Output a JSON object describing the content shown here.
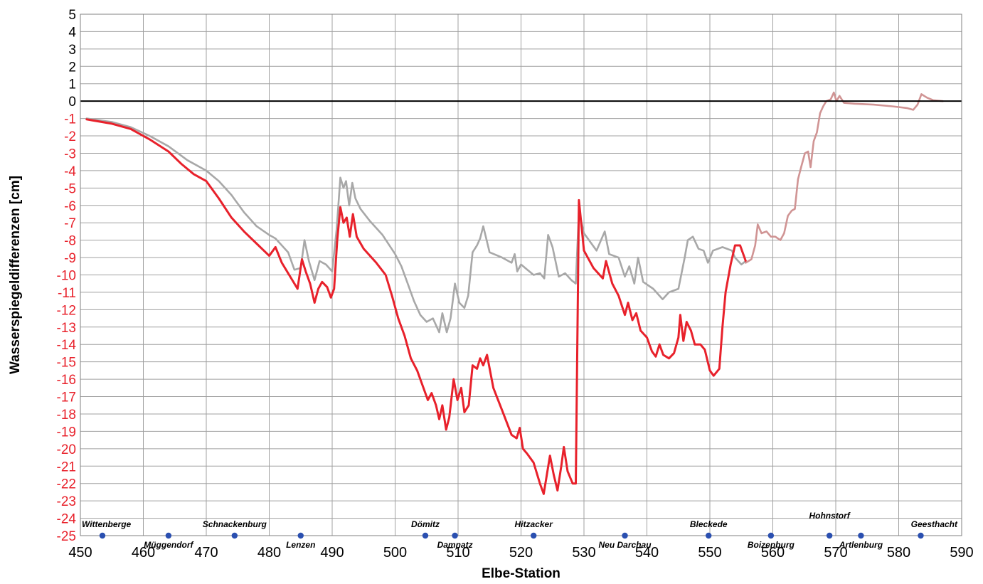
{
  "chart_data": {
    "type": "line",
    "xlabel": "Elbe-Station",
    "ylabel": "Wasserspiegeldifferenzen [cm]",
    "xlim": [
      450,
      590
    ],
    "ylim": [
      -25,
      5
    ],
    "x_ticks": [
      450,
      460,
      470,
      480,
      490,
      500,
      510,
      520,
      530,
      540,
      550,
      560,
      570,
      580,
      590
    ],
    "y_ticks": [
      5,
      4,
      3,
      2,
      1,
      0,
      -1,
      -2,
      -3,
      -4,
      -5,
      -6,
      -7,
      -8,
      -9,
      -10,
      -11,
      -12,
      -13,
      -14,
      -15,
      -16,
      -17,
      -18,
      -19,
      -20,
      -21,
      -22,
      -23,
      -24,
      -25
    ],
    "grid": true,
    "colors": {
      "red_series": "#e8212b",
      "gray_series": "#a8a8a8",
      "zero_line": "#000000",
      "positive_tick_labels": "#000000",
      "negative_tick_labels": "#e8212b",
      "station_marker": "#2a4fb0",
      "grid": "#a0a0a0"
    },
    "series": [
      {
        "color": "#a8a8a8",
        "points": [
          [
            451,
            -1.0
          ],
          [
            455,
            -1.2
          ],
          [
            458,
            -1.5
          ],
          [
            461,
            -2.0
          ],
          [
            464,
            -2.6
          ],
          [
            467,
            -3.4
          ],
          [
            470,
            -4.0
          ],
          [
            472,
            -4.6
          ],
          [
            474,
            -5.4
          ],
          [
            476,
            -6.4
          ],
          [
            478,
            -7.2
          ],
          [
            480,
            -7.7
          ],
          [
            481,
            -7.9
          ],
          [
            483,
            -8.7
          ],
          [
            484,
            -9.7
          ],
          [
            485,
            -9.6
          ],
          [
            485.6,
            -8.0
          ],
          [
            486.3,
            -9.2
          ],
          [
            487.2,
            -10.3
          ],
          [
            488,
            -9.2
          ],
          [
            489,
            -9.4
          ],
          [
            490,
            -9.8
          ],
          [
            490.7,
            -7.4
          ],
          [
            491.3,
            -4.4
          ],
          [
            491.8,
            -5.0
          ],
          [
            492.2,
            -4.6
          ],
          [
            492.7,
            -6.0
          ],
          [
            493.2,
            -4.7
          ],
          [
            493.7,
            -5.6
          ],
          [
            494.5,
            -6.2
          ],
          [
            496,
            -6.9
          ],
          [
            498,
            -7.7
          ],
          [
            500,
            -8.8
          ],
          [
            501,
            -9.5
          ],
          [
            502,
            -10.5
          ],
          [
            503,
            -11.5
          ],
          [
            504,
            -12.3
          ],
          [
            505,
            -12.7
          ],
          [
            506,
            -12.5
          ],
          [
            507,
            -13.3
          ],
          [
            507.5,
            -12.2
          ],
          [
            508.2,
            -13.3
          ],
          [
            508.8,
            -12.5
          ],
          [
            509.5,
            -10.5
          ],
          [
            510.2,
            -11.6
          ],
          [
            511,
            -11.9
          ],
          [
            511.6,
            -11.2
          ],
          [
            512.3,
            -8.7
          ],
          [
            513,
            -8.3
          ],
          [
            513.5,
            -7.9
          ],
          [
            514,
            -7.2
          ],
          [
            515,
            -8.7
          ],
          [
            517,
            -9.0
          ],
          [
            518.5,
            -9.3
          ],
          [
            519,
            -8.8
          ],
          [
            519.4,
            -9.8
          ],
          [
            520,
            -9.4
          ],
          [
            521,
            -9.7
          ],
          [
            522,
            -10.0
          ],
          [
            523,
            -9.9
          ],
          [
            523.7,
            -10.2
          ],
          [
            524.3,
            -7.7
          ],
          [
            525,
            -8.4
          ],
          [
            526,
            -10.1
          ],
          [
            527,
            -9.9
          ],
          [
            528,
            -10.3
          ],
          [
            528.7,
            -10.5
          ],
          [
            529.2,
            -6.3
          ],
          [
            530,
            -7.6
          ],
          [
            532,
            -8.6
          ],
          [
            533.3,
            -7.5
          ],
          [
            534,
            -8.8
          ],
          [
            535.5,
            -9.0
          ],
          [
            536.5,
            -10.1
          ],
          [
            537.2,
            -9.5
          ],
          [
            538,
            -10.5
          ],
          [
            538.6,
            -9.0
          ],
          [
            539.4,
            -10.4
          ],
          [
            541,
            -10.8
          ],
          [
            542.5,
            -11.4
          ],
          [
            543.5,
            -11.0
          ],
          [
            545,
            -10.8
          ],
          [
            546,
            -9.0
          ],
          [
            546.5,
            -8.0
          ],
          [
            547.3,
            -7.8
          ],
          [
            548.2,
            -8.5
          ],
          [
            549,
            -8.6
          ],
          [
            549.7,
            -9.3
          ],
          [
            550.5,
            -8.6
          ],
          [
            552,
            -8.4
          ],
          [
            553.5,
            -8.6
          ],
          [
            554,
            -9.0
          ],
          [
            555,
            -9.4
          ],
          [
            555.7,
            -9.2
          ]
        ]
      },
      {
        "color": "#e8212b",
        "points": [
          [
            451,
            -1.05
          ],
          [
            455,
            -1.3
          ],
          [
            458,
            -1.6
          ],
          [
            461,
            -2.2
          ],
          [
            464,
            -2.9
          ],
          [
            466,
            -3.6
          ],
          [
            468,
            -4.2
          ],
          [
            470,
            -4.6
          ],
          [
            472,
            -5.6
          ],
          [
            474,
            -6.7
          ],
          [
            476,
            -7.5
          ],
          [
            478,
            -8.2
          ],
          [
            480,
            -8.9
          ],
          [
            481,
            -8.4
          ],
          [
            482,
            -9.3
          ],
          [
            483.5,
            -10.2
          ],
          [
            484.5,
            -10.8
          ],
          [
            485.2,
            -9.1
          ],
          [
            485.8,
            -9.8
          ],
          [
            486.5,
            -10.5
          ],
          [
            487.2,
            -11.6
          ],
          [
            487.8,
            -10.8
          ],
          [
            488.4,
            -10.4
          ],
          [
            489.2,
            -10.7
          ],
          [
            489.8,
            -11.3
          ],
          [
            490.3,
            -10.8
          ],
          [
            490.8,
            -8.0
          ],
          [
            491.3,
            -6.1
          ],
          [
            491.8,
            -7.0
          ],
          [
            492.3,
            -6.7
          ],
          [
            492.8,
            -7.8
          ],
          [
            493.3,
            -6.5
          ],
          [
            493.9,
            -7.8
          ],
          [
            495,
            -8.5
          ],
          [
            497,
            -9.3
          ],
          [
            498.5,
            -10.0
          ],
          [
            499.5,
            -11.2
          ],
          [
            500.5,
            -12.5
          ],
          [
            501.5,
            -13.5
          ],
          [
            502.5,
            -14.8
          ],
          [
            503.5,
            -15.5
          ],
          [
            504.5,
            -16.5
          ],
          [
            505.2,
            -17.2
          ],
          [
            505.8,
            -16.8
          ],
          [
            506.5,
            -17.5
          ],
          [
            507,
            -18.3
          ],
          [
            507.5,
            -17.5
          ],
          [
            508.1,
            -18.9
          ],
          [
            508.6,
            -18.2
          ],
          [
            509.3,
            -16.0
          ],
          [
            509.9,
            -17.2
          ],
          [
            510.5,
            -16.5
          ],
          [
            511,
            -17.9
          ],
          [
            511.7,
            -17.5
          ],
          [
            512.3,
            -15.2
          ],
          [
            513,
            -15.4
          ],
          [
            513.5,
            -14.8
          ],
          [
            514,
            -15.2
          ],
          [
            514.6,
            -14.6
          ],
          [
            515.6,
            -16.5
          ],
          [
            517,
            -17.8
          ],
          [
            518.5,
            -19.2
          ],
          [
            519.3,
            -19.4
          ],
          [
            519.8,
            -18.8
          ],
          [
            520.3,
            -20.0
          ],
          [
            521,
            -20.3
          ],
          [
            522,
            -20.8
          ],
          [
            523,
            -22.0
          ],
          [
            523.6,
            -22.6
          ],
          [
            524.1,
            -21.5
          ],
          [
            524.6,
            -20.4
          ],
          [
            525.2,
            -21.5
          ],
          [
            525.8,
            -22.4
          ],
          [
            526.4,
            -21.0
          ],
          [
            526.8,
            -19.9
          ],
          [
            527.4,
            -21.3
          ],
          [
            528.2,
            -22.0
          ],
          [
            528.7,
            -22.0
          ],
          [
            529.2,
            -5.7
          ],
          [
            530,
            -8.6
          ],
          [
            531.5,
            -9.6
          ],
          [
            533,
            -10.2
          ],
          [
            533.5,
            -9.2
          ],
          [
            534.5,
            -10.5
          ],
          [
            535.5,
            -11.2
          ],
          [
            536.5,
            -12.3
          ],
          [
            537,
            -11.6
          ],
          [
            537.7,
            -12.6
          ],
          [
            538.3,
            -12.2
          ],
          [
            539,
            -13.2
          ],
          [
            540,
            -13.6
          ],
          [
            540.8,
            -14.4
          ],
          [
            541.4,
            -14.7
          ],
          [
            542,
            -14.0
          ],
          [
            542.6,
            -14.6
          ],
          [
            543.5,
            -14.8
          ],
          [
            544.3,
            -14.5
          ],
          [
            545,
            -13.6
          ],
          [
            545.3,
            -12.3
          ],
          [
            545.8,
            -13.8
          ],
          [
            546.3,
            -12.7
          ],
          [
            547,
            -13.2
          ],
          [
            547.6,
            -14.0
          ],
          [
            548.5,
            -14.0
          ],
          [
            549.2,
            -14.3
          ],
          [
            550,
            -15.5
          ],
          [
            550.6,
            -15.8
          ],
          [
            551.5,
            -15.4
          ],
          [
            552,
            -13.0
          ],
          [
            552.5,
            -11.0
          ],
          [
            553.3,
            -9.4
          ],
          [
            554,
            -8.3
          ],
          [
            554.8,
            -8.3
          ],
          [
            555.5,
            -9.0
          ],
          [
            555.7,
            -9.2
          ]
        ]
      },
      {
        "color": "#d09494",
        "points": [
          [
            555.7,
            -9.3
          ],
          [
            556.6,
            -9.1
          ],
          [
            557.2,
            -8.3
          ],
          [
            557.6,
            -7.1
          ],
          [
            558.2,
            -7.6
          ],
          [
            559,
            -7.5
          ],
          [
            559.7,
            -7.8
          ],
          [
            560.4,
            -7.8
          ],
          [
            561.2,
            -8.0
          ],
          [
            561.8,
            -7.6
          ],
          [
            562.4,
            -6.6
          ],
          [
            563,
            -6.3
          ],
          [
            563.5,
            -6.2
          ],
          [
            564,
            -4.5
          ],
          [
            564.5,
            -3.8
          ],
          [
            565.1,
            -3.0
          ],
          [
            565.6,
            -2.9
          ],
          [
            566,
            -3.8
          ],
          [
            566.5,
            -2.3
          ],
          [
            567,
            -1.8
          ],
          [
            567.5,
            -0.7
          ],
          [
            568,
            -0.3
          ],
          [
            568.5,
            0.0
          ],
          [
            569.2,
            0.1
          ],
          [
            569.7,
            0.5
          ],
          [
            570.1,
            0.0
          ],
          [
            570.6,
            0.3
          ],
          [
            571.3,
            -0.1
          ],
          [
            573,
            -0.15
          ],
          [
            576,
            -0.2
          ],
          [
            579,
            -0.3
          ],
          [
            581.3,
            -0.4
          ],
          [
            582.3,
            -0.5
          ],
          [
            583,
            -0.2
          ],
          [
            583.6,
            0.4
          ],
          [
            584.5,
            0.2
          ],
          [
            585.5,
            0.05
          ],
          [
            587,
            0.0
          ]
        ]
      }
    ],
    "stations": [
      {
        "name": "Wittenberge",
        "x": 453.5,
        "label_pos": "above"
      },
      {
        "name": "Müggendorf",
        "x": 464,
        "label_pos": "below"
      },
      {
        "name": "Schnackenburg",
        "x": 474.5,
        "label_pos": "above"
      },
      {
        "name": "Lenzen",
        "x": 485,
        "label_pos": "below"
      },
      {
        "name": "Dömitz",
        "x": 504.8,
        "label_pos": "above"
      },
      {
        "name": "Damnatz",
        "x": 509.5,
        "label_pos": "below"
      },
      {
        "name": "Hitzacker",
        "x": 522,
        "label_pos": "above"
      },
      {
        "name": "Neu Darchau",
        "x": 536.5,
        "label_pos": "below"
      },
      {
        "name": "Bleckede",
        "x": 549.8,
        "label_pos": "above"
      },
      {
        "name": "Boizenburg",
        "x": 559.7,
        "label_pos": "below"
      },
      {
        "name": "Hohnstorf",
        "x": 569,
        "label_pos": "above_high"
      },
      {
        "name": "Artlenburg",
        "x": 574,
        "label_pos": "below"
      },
      {
        "name": "Geesthacht",
        "x": 583.5,
        "label_pos": "above"
      }
    ]
  }
}
